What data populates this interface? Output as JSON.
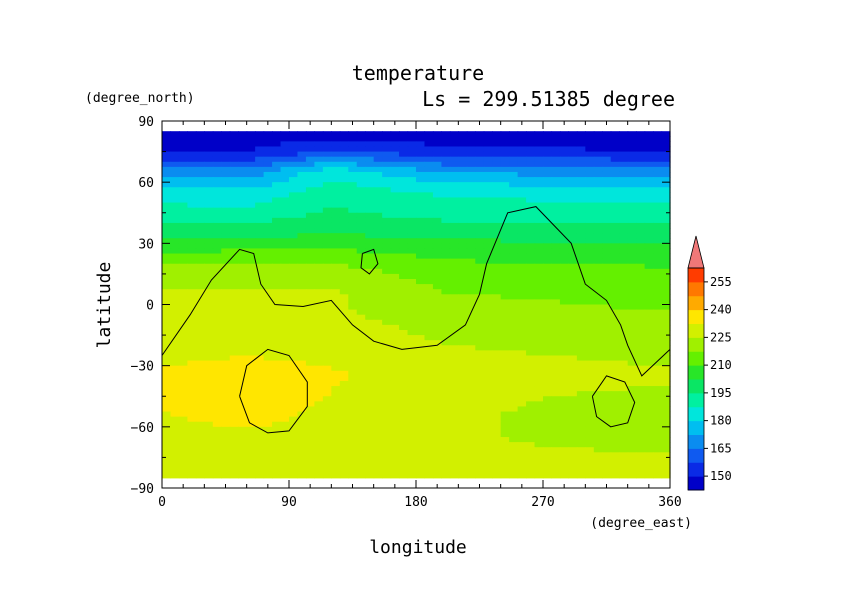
{
  "chart_data": {
    "type": "heatmap",
    "title": "temperature",
    "subtitle": "Ls = 299.51385 degree",
    "xlabel": "longitude",
    "ylabel": "latitude",
    "x_unit": "(degree_east)",
    "y_unit": "(degree_north)",
    "xlim": [
      0,
      360
    ],
    "ylim": [
      -90,
      90
    ],
    "x_ticks": [
      0,
      90,
      180,
      270,
      360
    ],
    "y_ticks": [
      90,
      60,
      30,
      0,
      -30,
      -60,
      -90
    ],
    "x_tick_labels": [
      "0",
      "90",
      "180",
      "270",
      "360"
    ],
    "y_tick_labels": [
      "90",
      "60",
      "30",
      "0",
      "−30",
      "−60",
      "−90"
    ],
    "colorbar": {
      "levels": [
        142.5,
        150,
        157.5,
        165,
        172.5,
        180,
        187.5,
        195,
        202.5,
        210,
        217.5,
        225,
        232.5,
        240,
        247.5,
        255,
        262.5
      ],
      "colors": [
        "#0000c8",
        "#0a2ae6",
        "#0f5af0",
        "#0a8cf0",
        "#00bef0",
        "#00e6dc",
        "#00f0a0",
        "#0ae664",
        "#28e628",
        "#64f000",
        "#a0f000",
        "#d2f000",
        "#ffe600",
        "#ffaa00",
        "#ff7800",
        "#ff3c00",
        "#f03c3c"
      ],
      "tick_labels": [
        "255",
        "240",
        "225",
        "210",
        "195",
        "180",
        "165",
        "150"
      ],
      "tick_values": [
        255,
        240,
        225,
        210,
        195,
        180,
        165,
        150
      ],
      "extend": "max",
      "extend_color": "#f07878"
    },
    "field": {
      "lats": [
        85,
        75,
        65,
        55,
        45,
        35,
        25,
        15,
        5,
        -5,
        -15,
        -25,
        -35,
        -45,
        -55,
        -65,
        -75,
        -85
      ],
      "rows": [
        {
          "lat": 85,
          "lon": [
            0,
            360
          ],
          "t": [
            145,
            145
          ]
        },
        {
          "lat": 75,
          "lon": [
            0,
            60,
            120,
            200,
            360
          ],
          "t": [
            150,
            150,
            158,
            152,
            150
          ]
        },
        {
          "lat": 65,
          "lon": [
            0,
            60,
            120,
            200,
            360
          ],
          "t": [
            170,
            168,
            185,
            172,
            168
          ]
        },
        {
          "lat": 55,
          "lon": [
            0,
            60,
            120,
            200,
            360
          ],
          "t": [
            184,
            182,
            192,
            186,
            184
          ]
        },
        {
          "lat": 45,
          "lon": [
            0,
            60,
            120,
            200,
            360
          ],
          "t": [
            190,
            190,
            196,
            192,
            190
          ]
        },
        {
          "lat": 35,
          "lon": [
            0,
            60,
            120,
            200,
            360
          ],
          "t": [
            200,
            200,
            202,
            200,
            198
          ]
        },
        {
          "lat": 25,
          "lon": [
            0,
            60,
            120,
            200,
            360
          ],
          "t": [
            210,
            212,
            212,
            208,
            206
          ]
        },
        {
          "lat": 15,
          "lon": [
            0,
            60,
            120,
            200,
            360
          ],
          "t": [
            222,
            222,
            222,
            214,
            212
          ]
        },
        {
          "lat": 5,
          "lon": [
            0,
            60,
            120,
            200,
            360
          ],
          "t": [
            226,
            226,
            226,
            218,
            214
          ]
        },
        {
          "lat": -5,
          "lon": [
            0,
            60,
            120,
            200,
            360
          ],
          "t": [
            228,
            228,
            226,
            222,
            218
          ]
        },
        {
          "lat": -15,
          "lon": [
            0,
            60,
            120,
            200,
            360
          ],
          "t": [
            228,
            228,
            228,
            224,
            222
          ]
        },
        {
          "lat": -25,
          "lon": [
            0,
            60,
            120,
            200,
            360
          ],
          "t": [
            230,
            232,
            230,
            226,
            224
          ]
        },
        {
          "lat": -35,
          "lon": [
            0,
            60,
            120,
            200,
            360
          ],
          "t": [
            234,
            240,
            234,
            226,
            226
          ]
        },
        {
          "lat": -45,
          "lon": [
            0,
            60,
            120,
            200,
            360
          ],
          "t": [
            234,
            238,
            232,
            226,
            224
          ]
        },
        {
          "lat": -55,
          "lon": [
            0,
            60,
            120,
            200,
            360
          ],
          "t": [
            232,
            236,
            230,
            226,
            222
          ]
        },
        {
          "lat": -65,
          "lon": [
            0,
            60,
            120,
            200,
            360
          ],
          "t": [
            228,
            230,
            228,
            226,
            222
          ]
        },
        {
          "lat": -75,
          "lon": [
            0,
            360
          ],
          "t": [
            226,
            226
          ]
        },
        {
          "lat": -85,
          "lon": [
            0,
            360
          ],
          "t": [
            226,
            226
          ]
        }
      ],
      "lat_extent": [
        -85,
        85
      ]
    },
    "contours": [
      {
        "name": "topography-contour",
        "points": [
          [
            0,
            -25
          ],
          [
            20,
            -5
          ],
          [
            35,
            12
          ],
          [
            55,
            27
          ],
          [
            65,
            25
          ],
          [
            70,
            10
          ],
          [
            80,
            0
          ],
          [
            100,
            -1
          ],
          [
            120,
            2
          ],
          [
            135,
            -10
          ],
          [
            150,
            -18
          ],
          [
            170,
            -22
          ],
          [
            195,
            -20
          ],
          [
            215,
            -10
          ],
          [
            225,
            5
          ],
          [
            230,
            20
          ],
          [
            245,
            45
          ],
          [
            265,
            48
          ],
          [
            290,
            30
          ],
          [
            300,
            10
          ],
          [
            315,
            2
          ],
          [
            325,
            -10
          ],
          [
            330,
            -20
          ],
          [
            340,
            -35
          ],
          [
            360,
            -22
          ]
        ]
      },
      {
        "name": "crater-contour-hellas",
        "points": [
          [
            55,
            -45
          ],
          [
            60,
            -30
          ],
          [
            75,
            -22
          ],
          [
            90,
            -25
          ],
          [
            103,
            -38
          ],
          [
            103,
            -50
          ],
          [
            90,
            -62
          ],
          [
            75,
            -63
          ],
          [
            62,
            -58
          ],
          [
            55,
            -45
          ]
        ]
      },
      {
        "name": "crater-contour-argyre",
        "points": [
          [
            305,
            -45
          ],
          [
            315,
            -35
          ],
          [
            328,
            -38
          ],
          [
            335,
            -48
          ],
          [
            330,
            -58
          ],
          [
            318,
            -60
          ],
          [
            308,
            -55
          ],
          [
            305,
            -45
          ]
        ]
      },
      {
        "name": "small-contour",
        "points": [
          [
            142,
            25
          ],
          [
            150,
            27
          ],
          [
            153,
            20
          ],
          [
            147,
            15
          ],
          [
            141,
            18
          ],
          [
            142,
            25
          ]
        ]
      }
    ]
  }
}
